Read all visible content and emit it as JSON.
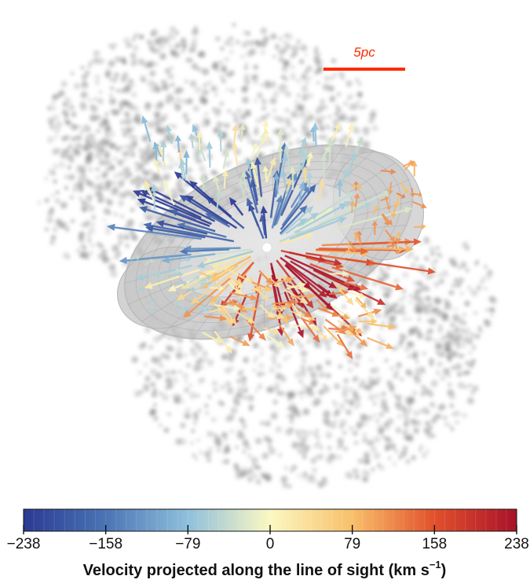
{
  "scale_bar": {
    "label": "5pc",
    "color": "#ff2a00"
  },
  "colorbar": {
    "ticks": [
      "−238",
      "−158",
      "−79",
      "0",
      "79",
      "158",
      "238"
    ],
    "title_main": "Velocity projected along the line of sight (km s",
    "title_sup": "−1",
    "title_end": ")",
    "colors": [
      "#2a3a92",
      "#4a74b4",
      "#8fc0dc",
      "#fbf8c2",
      "#f8c06a",
      "#e2502c",
      "#a8122a"
    ]
  },
  "icons": {
    "center": "central-source-icon"
  }
}
